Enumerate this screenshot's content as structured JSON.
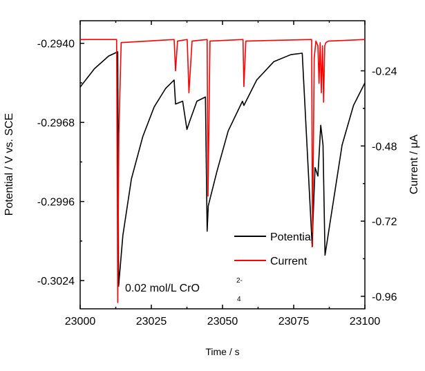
{
  "chart_data": {
    "type": "line",
    "title": "",
    "xlabel": "Time / s",
    "ylabel_left": "Potential / V vs. SCE",
    "ylabel_right": "Current / µA",
    "xlim": [
      23000,
      23100
    ],
    "ylim_left": [
      -0.3034,
      -0.2932
    ],
    "ylim_right": [
      -1.0,
      -0.08
    ],
    "x_ticks": [
      "23000",
      "23025",
      "23050",
      "23075",
      "23100"
    ],
    "y_left_ticks": [
      "-0.2940",
      "-0.2968",
      "-0.2996",
      "-0.3024"
    ],
    "y_right_ticks": [
      "-0.24",
      "-0.48",
      "-0.72",
      "-0.96"
    ],
    "annotation": {
      "text": "0.02 mol/L CrO",
      "superscript": "2-",
      "subscript": "4"
    },
    "legend": {
      "placement": "bottom-right",
      "entries": [
        "Potential",
        "Current"
      ]
    },
    "series": [
      {
        "name": "Potential",
        "axis": "left",
        "color": "#000000",
        "x": [
          23000,
          23005,
          23010,
          23013.2,
          23013.5,
          23015,
          23018,
          23022,
          23026,
          23030,
          23033,
          23033.5,
          23036,
          23037.5,
          23038.5,
          23041,
          23044,
          23044.6,
          23045,
          23048,
          23052,
          23057,
          23057.5,
          23062,
          23068,
          23074,
          23078,
          23081.5,
          23081.8,
          23082.5,
          23083.5,
          23084.5,
          23085.3,
          23086,
          23088,
          23092,
          23096,
          23100
        ],
        "values": [
          -0.29555,
          -0.2949,
          -0.29445,
          -0.2943,
          -0.3026,
          -0.3008,
          -0.2988,
          -0.2973,
          -0.29625,
          -0.2956,
          -0.2953,
          -0.29615,
          -0.29605,
          -0.29705,
          -0.29675,
          -0.29605,
          -0.2959,
          -0.30065,
          -0.29975,
          -0.29855,
          -0.2971,
          -0.29605,
          -0.2962,
          -0.2953,
          -0.29465,
          -0.2944,
          -0.29435,
          -0.3012,
          -0.30025,
          -0.2984,
          -0.2987,
          -0.2969,
          -0.2976,
          -0.3015,
          -0.3002,
          -0.2976,
          -0.2962,
          -0.2954
        ]
      },
      {
        "name": "Current",
        "axis": "right",
        "color": "#ff0000",
        "x": [
          23000,
          23012.8,
          23013.2,
          23013.6,
          23014.4,
          23033,
          23033.5,
          23034.2,
          23037.6,
          23038.2,
          23039.3,
          23044.6,
          23044.9,
          23045.6,
          23057.2,
          23057.5,
          23058.2,
          23081.3,
          23081.6,
          23082.2,
          23082.8,
          23083.5,
          23083.9,
          23084.3,
          23084.7,
          23085.1,
          23085.5,
          23085.9,
          23086.3,
          23087.2,
          23100
        ],
        "values": [
          -0.14,
          -0.14,
          -0.98,
          -0.44,
          -0.15,
          -0.14,
          -0.24,
          -0.145,
          -0.14,
          -0.31,
          -0.145,
          -0.14,
          -0.64,
          -0.145,
          -0.14,
          -0.29,
          -0.145,
          -0.14,
          -0.8,
          -0.2,
          -0.145,
          -0.16,
          -0.28,
          -0.15,
          -0.31,
          -0.16,
          -0.34,
          -0.16,
          -0.15,
          -0.145,
          -0.14
        ]
      }
    ]
  }
}
